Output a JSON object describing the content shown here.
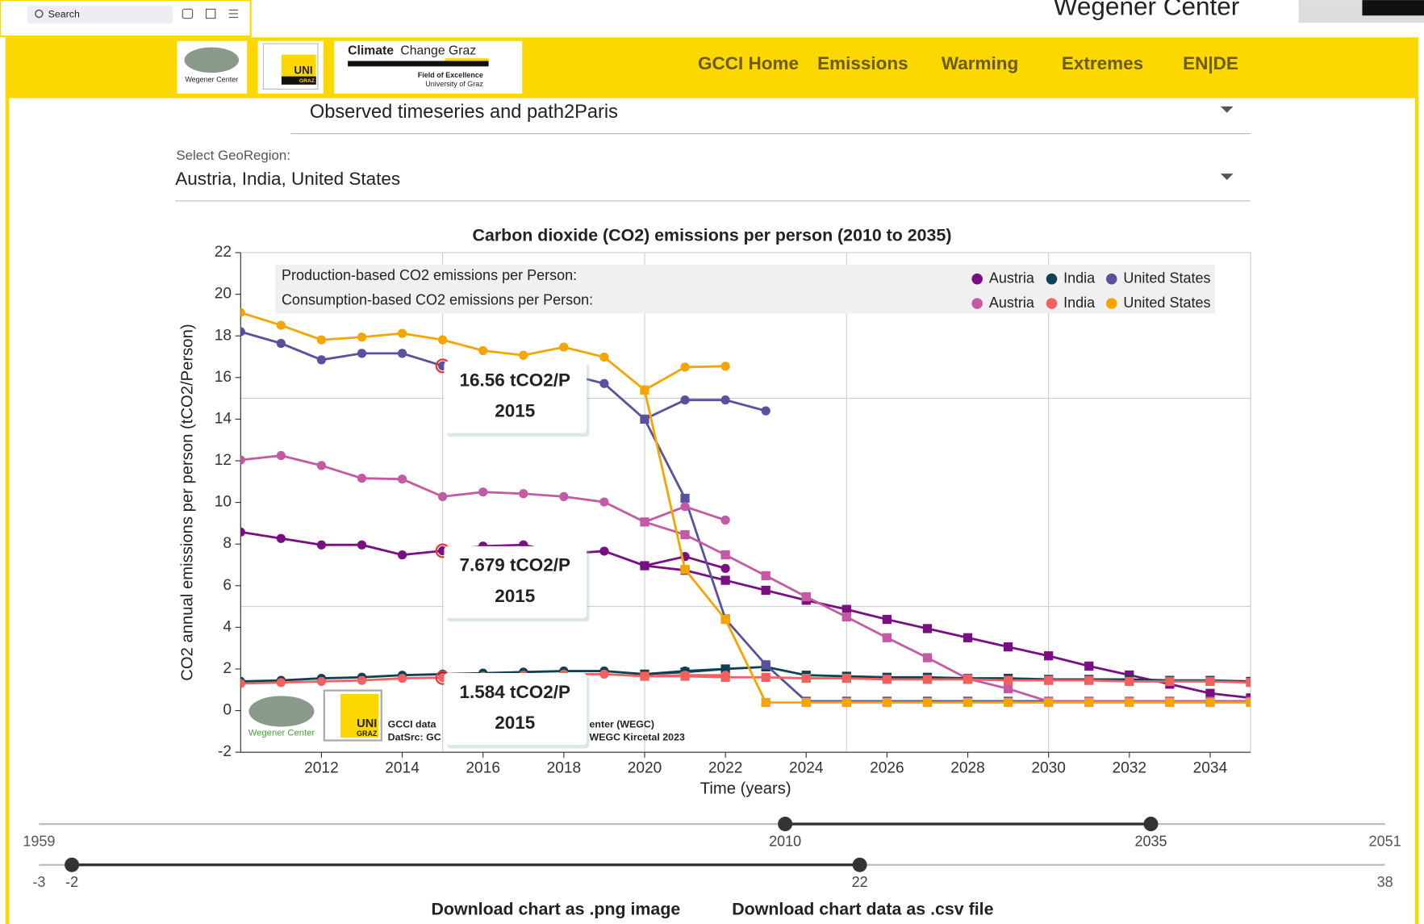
{
  "browser": {
    "search": "Search",
    "site": "Wegener Center"
  },
  "header": {
    "logo_wegener": "Wegener Center",
    "logo_uni_top": "UNI",
    "logo_uni_bottom": "GRAZ",
    "ccg_title_bold": "Climate",
    "ccg_title": "Change Graz",
    "ccg_sub1": "Field of Excellence",
    "ccg_sub2": "University of Graz"
  },
  "nav": [
    "GCCI Home",
    "Emissions",
    "Warming",
    "Extremes",
    "EN|DE"
  ],
  "dropdowns": [
    {
      "value": "Observed timeseries and path2Paris"
    },
    {
      "label": "Select GeoRegion:",
      "value": "Austria, India, United States"
    }
  ],
  "chart_data": {
    "type": "line",
    "title": "Carbon dioxide (CO2) emissions per person (2010 to 2035)",
    "x_label": "Time (years)",
    "y_label": "CO2 annual emissions per person (tCO2/Person)",
    "x": [
      2010,
      2011,
      2012,
      2013,
      2014,
      2015,
      2016,
      2017,
      2018,
      2019,
      2020,
      2021,
      2022,
      2023,
      2024,
      2025,
      2026,
      2027,
      2028,
      2029,
      2030,
      2031,
      2032,
      2033,
      2034,
      2035
    ],
    "xlim": [
      2010,
      2035
    ],
    "xticks": [
      2012,
      2014,
      2016,
      2018,
      2020,
      2022,
      2024,
      2026,
      2028,
      2030,
      2032,
      2034
    ],
    "ylim": [
      -2,
      22
    ],
    "yticks": [
      -2,
      0,
      2,
      4,
      6,
      8,
      10,
      12,
      14,
      16,
      18,
      20,
      22
    ],
    "xgrid": [
      2015,
      2020,
      2025,
      2030
    ],
    "ygrid": [
      5,
      15
    ],
    "legend_rows": [
      "Production-based CO2 emissions per Person:",
      "Consumption-based CO2 emissions per Person:"
    ],
    "series": [
      {
        "name": "Austria",
        "color": "#7a0f84",
        "values": [
          8.58,
          8.27,
          7.96,
          7.96,
          7.48,
          7.679,
          7.9,
          7.96,
          7.53,
          7.66,
          6.96,
          7.4,
          6.83,
          null,
          null,
          null,
          null,
          null,
          null,
          null,
          null,
          null,
          null,
          null,
          null,
          null
        ],
        "pathway": [
          null,
          null,
          null,
          null,
          null,
          null,
          null,
          null,
          null,
          null,
          6.96,
          6.74,
          6.26,
          5.78,
          5.3,
          4.86,
          4.38,
          3.94,
          3.5,
          3.06,
          2.63,
          2.14,
          1.71,
          1.27,
          0.83,
          0.61
        ]
      },
      {
        "name": "India",
        "color": "#0d4153",
        "values": [
          1.4,
          1.45,
          1.55,
          1.6,
          1.7,
          1.75,
          1.8,
          1.85,
          1.9,
          1.9,
          1.75,
          1.9,
          2.0,
          null,
          null,
          null,
          null,
          null,
          null,
          null,
          null,
          null,
          null,
          null,
          null,
          null
        ],
        "pathway": [
          null,
          null,
          null,
          null,
          null,
          null,
          null,
          null,
          null,
          null,
          1.75,
          1.85,
          2.0,
          2.1,
          1.7,
          1.65,
          1.6,
          1.6,
          1.55,
          1.55,
          1.5,
          1.5,
          1.5,
          1.45,
          1.45,
          1.4
        ]
      },
      {
        "name": "United States",
        "color": "#5b509e",
        "values": [
          18.2,
          17.64,
          16.85,
          17.16,
          17.16,
          16.56,
          16.4,
          16.1,
          16.2,
          15.71,
          14.0,
          14.92,
          14.92,
          14.4,
          null,
          null,
          null,
          null,
          null,
          null,
          null,
          null,
          null,
          null,
          null,
          null
        ],
        "pathway": [
          null,
          null,
          null,
          null,
          null,
          null,
          null,
          null,
          null,
          null,
          14.0,
          10.2,
          4.4,
          2.2,
          0.45,
          0.45,
          0.45,
          0.45,
          0.45,
          0.45,
          0.45,
          0.45,
          0.45,
          0.45,
          0.45,
          0.45
        ]
      },
      {
        "name": "Austria",
        "color": "#c45aa3",
        "values": [
          12.04,
          12.25,
          11.77,
          11.16,
          11.12,
          10.28,
          10.5,
          10.42,
          10.28,
          10.02,
          9.06,
          9.8,
          9.15,
          null,
          null,
          null,
          null,
          null,
          null,
          null,
          null,
          null,
          null,
          null,
          null,
          null
        ],
        "pathway": [
          null,
          null,
          null,
          null,
          null,
          null,
          null,
          null,
          null,
          null,
          9.06,
          8.45,
          7.48,
          6.48,
          5.47,
          4.5,
          3.5,
          2.54,
          1.53,
          1.05,
          0.44,
          0.44,
          0.44,
          0.44,
          0.44,
          0.44
        ]
      },
      {
        "name": "India",
        "color": "#f2605f",
        "values": [
          1.3,
          1.35,
          1.4,
          1.45,
          1.55,
          1.584,
          1.65,
          1.7,
          1.75,
          1.75,
          1.65,
          1.7,
          1.7,
          null,
          null,
          null,
          null,
          null,
          null,
          null,
          null,
          null,
          null,
          null,
          null,
          null
        ],
        "pathway": [
          null,
          null,
          null,
          null,
          null,
          null,
          null,
          null,
          null,
          null,
          1.65,
          1.65,
          1.6,
          1.6,
          1.55,
          1.55,
          1.5,
          1.5,
          1.5,
          1.45,
          1.45,
          1.45,
          1.4,
          1.4,
          1.4,
          1.35
        ]
      },
      {
        "name": "United States",
        "color": "#f5a500",
        "values": [
          19.12,
          18.51,
          17.81,
          17.94,
          18.12,
          17.81,
          17.29,
          17.07,
          17.46,
          16.98,
          15.4,
          16.5,
          16.54,
          null,
          null,
          null,
          null,
          null,
          null,
          null,
          null,
          null,
          null,
          null,
          null,
          null
        ],
        "pathway": [
          null,
          null,
          null,
          null,
          null,
          null,
          null,
          null,
          null,
          null,
          15.4,
          6.78,
          4.38,
          0.39,
          0.39,
          0.39,
          0.39,
          0.39,
          0.39,
          0.39,
          0.39,
          0.39,
          0.39,
          0.39,
          0.39,
          0.39
        ]
      }
    ],
    "tooltips": [
      {
        "value": 16.56,
        "label": "16.56 tCO2/P",
        "x": 2015
      },
      {
        "value": 7.679,
        "label": "7.679 tCO2/P",
        "x": 2015
      },
      {
        "value": 1.584,
        "label": "1.584 tCO2/P",
        "x": 2015
      }
    ],
    "footer": [
      "GCCI data",
      "DatSrc: GC",
      "enter (WEGC)",
      "WEGC Kircetal 2023"
    ]
  },
  "sliders": [
    {
      "min": 1959,
      "max": 2051,
      "handles": [
        2010,
        2035
      ]
    },
    {
      "min": -3,
      "max": 38,
      "handles": [
        -2,
        22
      ]
    }
  ],
  "downloads": [
    "Download chart as .png image",
    "Download chart data as .csv file"
  ]
}
